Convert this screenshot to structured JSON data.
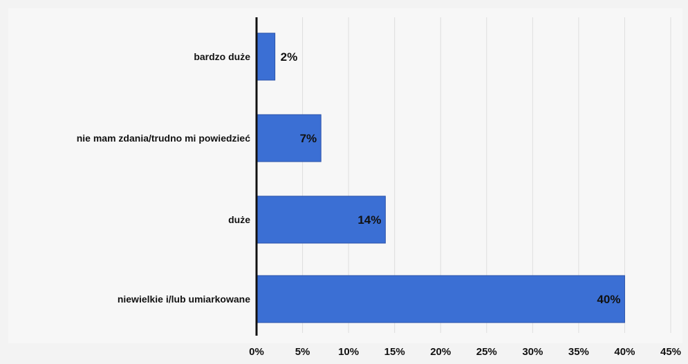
{
  "chart_data": {
    "type": "bar",
    "orientation": "horizontal",
    "categories": [
      "bardzo duże",
      "nie mam zdania/trudno mi powiedzieć",
      "duże",
      "niewielkie i/lub umiarkowane"
    ],
    "values": [
      2,
      7,
      14,
      40
    ],
    "data_labels": [
      "2%",
      "7%",
      "14%",
      "40%"
    ],
    "x_ticks": [
      "0%",
      "5%",
      "10%",
      "15%",
      "20%",
      "25%",
      "30%",
      "35%",
      "40%",
      "45%"
    ],
    "xlim": [
      0,
      45
    ],
    "unit": "%",
    "grid": "vertical",
    "legend": "none",
    "colors": {
      "bar": "#3b6fd4",
      "bar_edge": "#2a52a8",
      "axis": "#111111",
      "grid": "#dedede"
    }
  }
}
